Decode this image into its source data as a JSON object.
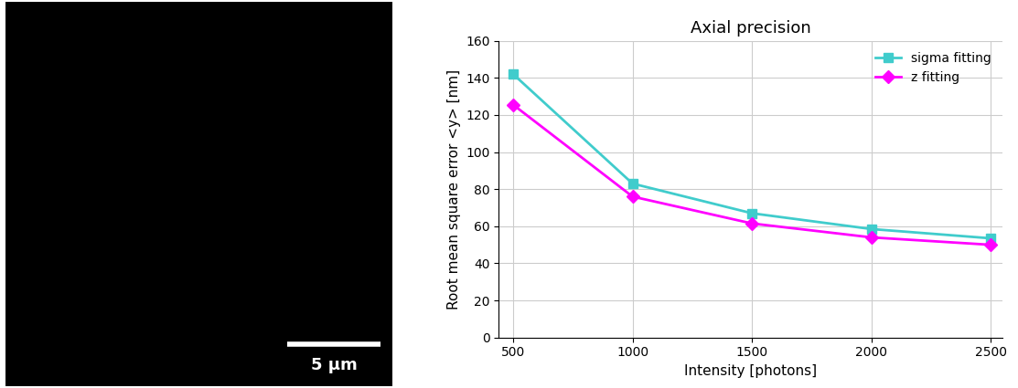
{
  "chart_data": [
    {
      "type": "image",
      "scale_bar_label": "5 µm"
    },
    {
      "type": "line",
      "title": "Axial precision",
      "x_label": "Intensity [photons]",
      "y_label": "Root mean square error <y> [nm]",
      "x": [
        500,
        1000,
        1500,
        2000,
        2500
      ],
      "series": [
        {
          "name": "sigma fitting",
          "color": "#40cccc",
          "marker": "square",
          "values": [
            142,
            83,
            67,
            58.5,
            53.5
          ]
        },
        {
          "name": "z fitting",
          "color": "#ff00ff",
          "marker": "diamond",
          "values": [
            125.5,
            76,
            61.5,
            54,
            50
          ]
        }
      ],
      "xlim": [
        440,
        2550
      ],
      "xticks": [
        500,
        1000,
        1500,
        2000,
        2500
      ],
      "ylim": [
        0,
        160
      ],
      "yticks": [
        0,
        20,
        40,
        60,
        80,
        100,
        120,
        140,
        160
      ],
      "grid": true,
      "legend": "upper right"
    }
  ]
}
